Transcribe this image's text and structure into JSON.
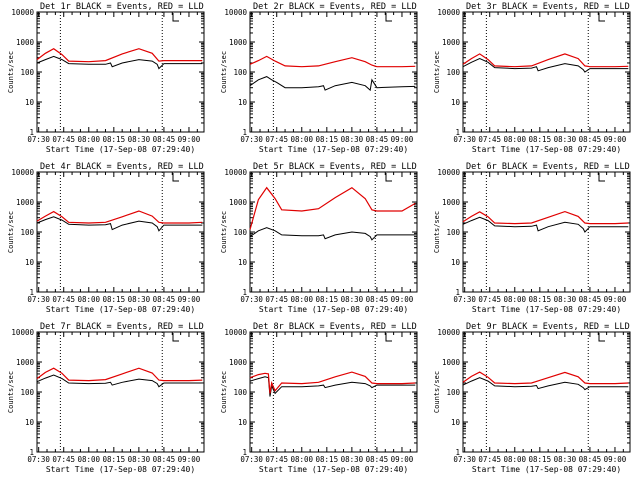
{
  "chart_data": [
    {
      "type": "line",
      "title": "Det 1r BLACK = Events, RED = LLD",
      "xlabel": "Start Time (17-Sep-08 07:29:40)",
      "ylabel": "Counts/sec",
      "yscale": "log",
      "ylim": [
        1,
        10000
      ],
      "x_ticks": [
        "07:30",
        "07:45",
        "08:00",
        "08:15",
        "08:30",
        "08:45",
        "09:00"
      ],
      "y_ticks": [
        "1",
        "10",
        "100",
        "1000",
        "10000"
      ],
      "vlines": [
        "07:43",
        "08:44"
      ],
      "series": [
        {
          "name": "Events",
          "color": "#000000",
          "x": [
            "07:29",
            "07:34",
            "07:39",
            "07:44",
            "07:48",
            "08:00",
            "08:10",
            "08:13",
            "08:14",
            "08:20",
            "08:30",
            "08:38",
            "08:41",
            "08:42",
            "08:45",
            "09:00",
            "09:08"
          ],
          "values": [
            200,
            260,
            330,
            260,
            190,
            180,
            180,
            200,
            150,
            200,
            260,
            230,
            180,
            130,
            190,
            190,
            190
          ]
        },
        {
          "name": "LLD",
          "color": "#e00000",
          "x": [
            "07:29",
            "07:34",
            "07:39",
            "07:44",
            "07:48",
            "08:00",
            "08:10",
            "08:20",
            "08:30",
            "08:38",
            "08:42",
            "08:45",
            "09:00",
            "09:08"
          ],
          "values": [
            260,
            420,
            600,
            380,
            230,
            220,
            240,
            400,
            600,
            420,
            230,
            240,
            240,
            240
          ]
        }
      ]
    },
    {
      "type": "line",
      "title": "Det 2r BLACK = Events, RED = LLD",
      "xlabel": "Start Time (17-Sep-08 07:29:40)",
      "ylabel": "Counts/sec",
      "yscale": "log",
      "ylim": [
        1,
        10000
      ],
      "x_ticks": [
        "07:30",
        "07:45",
        "08:00",
        "08:15",
        "08:30",
        "08:45",
        "09:00"
      ],
      "y_ticks": [
        "1",
        "10",
        "100",
        "1000",
        "10000"
      ],
      "vlines": [
        "07:43",
        "08:44"
      ],
      "series": [
        {
          "name": "Events",
          "color": "#000000",
          "x": [
            "07:29",
            "07:34",
            "07:39",
            "07:42",
            "07:45",
            "07:50",
            "08:00",
            "08:10",
            "08:13",
            "08:14",
            "08:20",
            "08:30",
            "08:38",
            "08:41",
            "08:42",
            "08:45",
            "09:00",
            "09:08"
          ],
          "values": [
            35,
            55,
            70,
            55,
            45,
            30,
            30,
            32,
            35,
            25,
            35,
            45,
            35,
            25,
            55,
            30,
            32,
            33
          ]
        },
        {
          "name": "LLD",
          "color": "#e00000",
          "x": [
            "07:29",
            "07:34",
            "07:39",
            "07:44",
            "07:50",
            "08:00",
            "08:10",
            "08:20",
            "08:30",
            "08:38",
            "08:42",
            "08:45",
            "09:00",
            "09:08"
          ],
          "values": [
            180,
            240,
            330,
            230,
            160,
            150,
            160,
            220,
            300,
            220,
            170,
            150,
            150,
            155
          ]
        }
      ]
    },
    {
      "type": "line",
      "title": "Det 3r BLACK = Events, RED = LLD",
      "xlabel": "Start Time (17-Sep-08 07:29:40)",
      "ylabel": "Counts/sec",
      "yscale": "log",
      "ylim": [
        1,
        10000
      ],
      "x_ticks": [
        "07:30",
        "07:45",
        "08:00",
        "08:15",
        "08:30",
        "08:45",
        "09:00"
      ],
      "y_ticks": [
        "1",
        "10",
        "100",
        "1000",
        "10000"
      ],
      "vlines": [
        "07:43",
        "08:44"
      ],
      "series": [
        {
          "name": "Events",
          "color": "#000000",
          "x": [
            "07:29",
            "07:34",
            "07:39",
            "07:44",
            "07:48",
            "08:00",
            "08:10",
            "08:13",
            "08:14",
            "08:20",
            "08:30",
            "08:38",
            "08:41",
            "08:42",
            "08:45",
            "09:00",
            "09:08"
          ],
          "values": [
            150,
            210,
            280,
            210,
            140,
            130,
            135,
            150,
            110,
            140,
            190,
            160,
            120,
            100,
            130,
            130,
            130
          ]
        },
        {
          "name": "LLD",
          "color": "#e00000",
          "x": [
            "07:29",
            "07:34",
            "07:39",
            "07:44",
            "07:48",
            "08:00",
            "08:10",
            "08:20",
            "08:30",
            "08:38",
            "08:42",
            "08:45",
            "09:00",
            "09:08"
          ],
          "values": [
            180,
            280,
            400,
            260,
            160,
            150,
            160,
            260,
            400,
            280,
            160,
            150,
            150,
            155
          ]
        }
      ]
    },
    {
      "type": "line",
      "title": "Det 4r BLACK = Events, RED = LLD",
      "xlabel": "Start Time (17-Sep-08 07:29:40)",
      "ylabel": "Counts/sec",
      "yscale": "log",
      "ylim": [
        1,
        10000
      ],
      "x_ticks": [
        "07:30",
        "07:45",
        "08:00",
        "08:15",
        "08:30",
        "08:45",
        "09:00"
      ],
      "y_ticks": [
        "1",
        "10",
        "100",
        "1000",
        "10000"
      ],
      "vlines": [
        "07:43",
        "08:44"
      ],
      "series": [
        {
          "name": "Events",
          "color": "#000000",
          "x": [
            "07:29",
            "07:34",
            "07:39",
            "07:44",
            "07:48",
            "08:00",
            "08:10",
            "08:13",
            "08:14",
            "08:20",
            "08:30",
            "08:38",
            "08:41",
            "08:42",
            "08:45",
            "09:00",
            "09:08"
          ],
          "values": [
            200,
            260,
            320,
            250,
            180,
            170,
            175,
            190,
            120,
            170,
            230,
            200,
            150,
            110,
            170,
            170,
            170
          ]
        },
        {
          "name": "LLD",
          "color": "#e00000",
          "x": [
            "07:29",
            "07:34",
            "07:39",
            "07:44",
            "07:48",
            "08:00",
            "08:10",
            "08:20",
            "08:30",
            "08:38",
            "08:42",
            "08:45",
            "09:00",
            "09:08"
          ],
          "values": [
            230,
            340,
            480,
            320,
            210,
            200,
            210,
            320,
            500,
            340,
            210,
            200,
            200,
            210
          ]
        }
      ]
    },
    {
      "type": "line",
      "title": "Det 5r BLACK = Events, RED = LLD",
      "xlabel": "Start Time (17-Sep-08 07:29:40)",
      "ylabel": "Counts/sec",
      "yscale": "log",
      "ylim": [
        1,
        10000
      ],
      "x_ticks": [
        "07:30",
        "07:45",
        "08:00",
        "08:15",
        "08:30",
        "08:45",
        "09:00"
      ],
      "y_ticks": [
        "1",
        "10",
        "100",
        "1000",
        "10000"
      ],
      "vlines": [
        "07:43",
        "08:44"
      ],
      "series": [
        {
          "name": "Events",
          "color": "#000000",
          "x": [
            "07:29",
            "07:34",
            "07:39",
            "07:44",
            "07:48",
            "08:00",
            "08:10",
            "08:13",
            "08:14",
            "08:20",
            "08:30",
            "08:38",
            "08:41",
            "08:42",
            "08:45",
            "09:00",
            "09:08"
          ],
          "values": [
            70,
            110,
            140,
            110,
            80,
            75,
            75,
            80,
            60,
            80,
            100,
            90,
            70,
            55,
            80,
            80,
            80
          ]
        },
        {
          "name": "LLD",
          "color": "#e00000",
          "x": [
            "07:29",
            "07:34",
            "07:39",
            "07:44",
            "07:48",
            "08:00",
            "08:10",
            "08:20",
            "08:30",
            "08:38",
            "08:42",
            "08:45",
            "09:00",
            "09:08"
          ],
          "values": [
            120,
            1200,
            3000,
            1300,
            550,
            500,
            600,
            1400,
            3000,
            1300,
            550,
            500,
            500,
            900
          ]
        }
      ]
    },
    {
      "type": "line",
      "title": "Det 6r BLACK = Events, RED = LLD",
      "xlabel": "Start Time (17-Sep-08 07:29:40)",
      "ylabel": "Counts/sec",
      "yscale": "log",
      "ylim": [
        1,
        10000
      ],
      "x_ticks": [
        "07:30",
        "07:45",
        "08:00",
        "08:15",
        "08:30",
        "08:45",
        "09:00"
      ],
      "y_ticks": [
        "1",
        "10",
        "100",
        "1000",
        "10000"
      ],
      "vlines": [
        "07:43",
        "08:44"
      ],
      "series": [
        {
          "name": "Events",
          "color": "#000000",
          "x": [
            "07:29",
            "07:34",
            "07:39",
            "07:44",
            "07:48",
            "08:00",
            "08:10",
            "08:13",
            "08:14",
            "08:20",
            "08:30",
            "08:38",
            "08:41",
            "08:42",
            "08:45",
            "09:00",
            "09:08"
          ],
          "values": [
            180,
            240,
            310,
            240,
            160,
            150,
            155,
            170,
            110,
            150,
            210,
            180,
            130,
            100,
            150,
            150,
            150
          ]
        },
        {
          "name": "LLD",
          "color": "#e00000",
          "x": [
            "07:29",
            "07:34",
            "07:39",
            "07:44",
            "07:48",
            "08:00",
            "08:10",
            "08:20",
            "08:30",
            "08:38",
            "08:42",
            "08:45",
            "09:00",
            "09:08"
          ],
          "values": [
            220,
            330,
            470,
            320,
            200,
            190,
            200,
            310,
            480,
            330,
            200,
            190,
            190,
            200
          ]
        }
      ]
    },
    {
      "type": "line",
      "title": "Det 7r BLACK = Events, RED = LLD",
      "xlabel": "Start Time (17-Sep-08 07:29:40)",
      "ylabel": "Counts/sec",
      "yscale": "log",
      "ylim": [
        1,
        10000
      ],
      "x_ticks": [
        "07:30",
        "07:45",
        "08:00",
        "08:15",
        "08:30",
        "08:45",
        "09:00"
      ],
      "y_ticks": [
        "1",
        "10",
        "100",
        "1000",
        "10000"
      ],
      "vlines": [
        "07:43",
        "08:44"
      ],
      "series": [
        {
          "name": "Events",
          "color": "#000000",
          "x": [
            "07:29",
            "07:34",
            "07:39",
            "07:44",
            "07:48",
            "08:00",
            "08:10",
            "08:13",
            "08:14",
            "08:20",
            "08:30",
            "08:38",
            "08:41",
            "08:42",
            "08:45",
            "09:00",
            "09:08"
          ],
          "values": [
            220,
            290,
            370,
            280,
            200,
            190,
            195,
            210,
            170,
            210,
            270,
            240,
            190,
            150,
            200,
            200,
            200
          ]
        },
        {
          "name": "LLD",
          "color": "#e00000",
          "x": [
            "07:29",
            "07:34",
            "07:39",
            "07:44",
            "07:48",
            "08:00",
            "08:10",
            "08:20",
            "08:30",
            "08:38",
            "08:42",
            "08:45",
            "09:00",
            "09:08"
          ],
          "values": [
            280,
            450,
            620,
            420,
            250,
            240,
            260,
            400,
            620,
            430,
            250,
            240,
            240,
            250
          ]
        }
      ]
    },
    {
      "type": "line",
      "title": "Det 8r BLACK = Events, RED = LLD",
      "xlabel": "Start Time (17-Sep-08 07:29:40)",
      "ylabel": "Counts/sec",
      "yscale": "log",
      "ylim": [
        1,
        10000
      ],
      "x_ticks": [
        "07:30",
        "07:45",
        "08:00",
        "08:15",
        "08:30",
        "08:45",
        "09:00"
      ],
      "y_ticks": [
        "1",
        "10",
        "100",
        "1000",
        "10000"
      ],
      "vlines": [
        "07:43",
        "08:44"
      ],
      "series": [
        {
          "name": "Events",
          "color": "#000000",
          "x": [
            "07:29",
            "07:34",
            "07:38",
            "07:40",
            "07:41",
            "07:42",
            "07:44",
            "07:48",
            "08:00",
            "08:10",
            "08:13",
            "08:14",
            "08:20",
            "08:30",
            "08:38",
            "08:41",
            "08:42",
            "08:45",
            "09:00",
            "09:08"
          ],
          "values": [
            230,
            280,
            320,
            300,
            70,
            160,
            90,
            150,
            150,
            160,
            170,
            140,
            170,
            210,
            190,
            160,
            140,
            170,
            170,
            170
          ]
        },
        {
          "name": "LLD",
          "color": "#e00000",
          "x": [
            "07:29",
            "07:34",
            "07:38",
            "07:40",
            "07:41",
            "07:42",
            "07:44",
            "07:48",
            "08:00",
            "08:10",
            "08:20",
            "08:30",
            "08:38",
            "08:42",
            "08:45",
            "09:00",
            "09:08"
          ],
          "values": [
            300,
            380,
            420,
            400,
            90,
            200,
            110,
            200,
            190,
            210,
            320,
            460,
            330,
            200,
            190,
            190,
            200
          ]
        }
      ]
    },
    {
      "type": "line",
      "title": "Det 9r BLACK = Events, RED = LLD",
      "xlabel": "Start Time (17-Sep-08 07:29:40)",
      "ylabel": "Counts/sec",
      "yscale": "log",
      "ylim": [
        1,
        10000
      ],
      "x_ticks": [
        "07:30",
        "07:45",
        "08:00",
        "08:15",
        "08:30",
        "08:45",
        "09:00"
      ],
      "y_ticks": [
        "1",
        "10",
        "100",
        "1000",
        "10000"
      ],
      "vlines": [
        "07:43",
        "08:44"
      ],
      "series": [
        {
          "name": "Events",
          "color": "#000000",
          "x": [
            "07:29",
            "07:34",
            "07:39",
            "07:44",
            "07:48",
            "08:00",
            "08:10",
            "08:13",
            "08:14",
            "08:20",
            "08:30",
            "08:38",
            "08:41",
            "08:42",
            "08:45",
            "09:00",
            "09:08"
          ],
          "values": [
            170,
            230,
            300,
            230,
            160,
            150,
            155,
            165,
            130,
            160,
            210,
            180,
            140,
            120,
            150,
            150,
            150
          ]
        },
        {
          "name": "LLD",
          "color": "#e00000",
          "x": [
            "07:29",
            "07:34",
            "07:39",
            "07:44",
            "07:48",
            "08:00",
            "08:10",
            "08:20",
            "08:30",
            "08:38",
            "08:42",
            "08:45",
            "09:00",
            "09:08"
          ],
          "values": [
            210,
            330,
            460,
            310,
            200,
            190,
            200,
            300,
            450,
            320,
            200,
            190,
            190,
            200
          ]
        }
      ]
    }
  ]
}
